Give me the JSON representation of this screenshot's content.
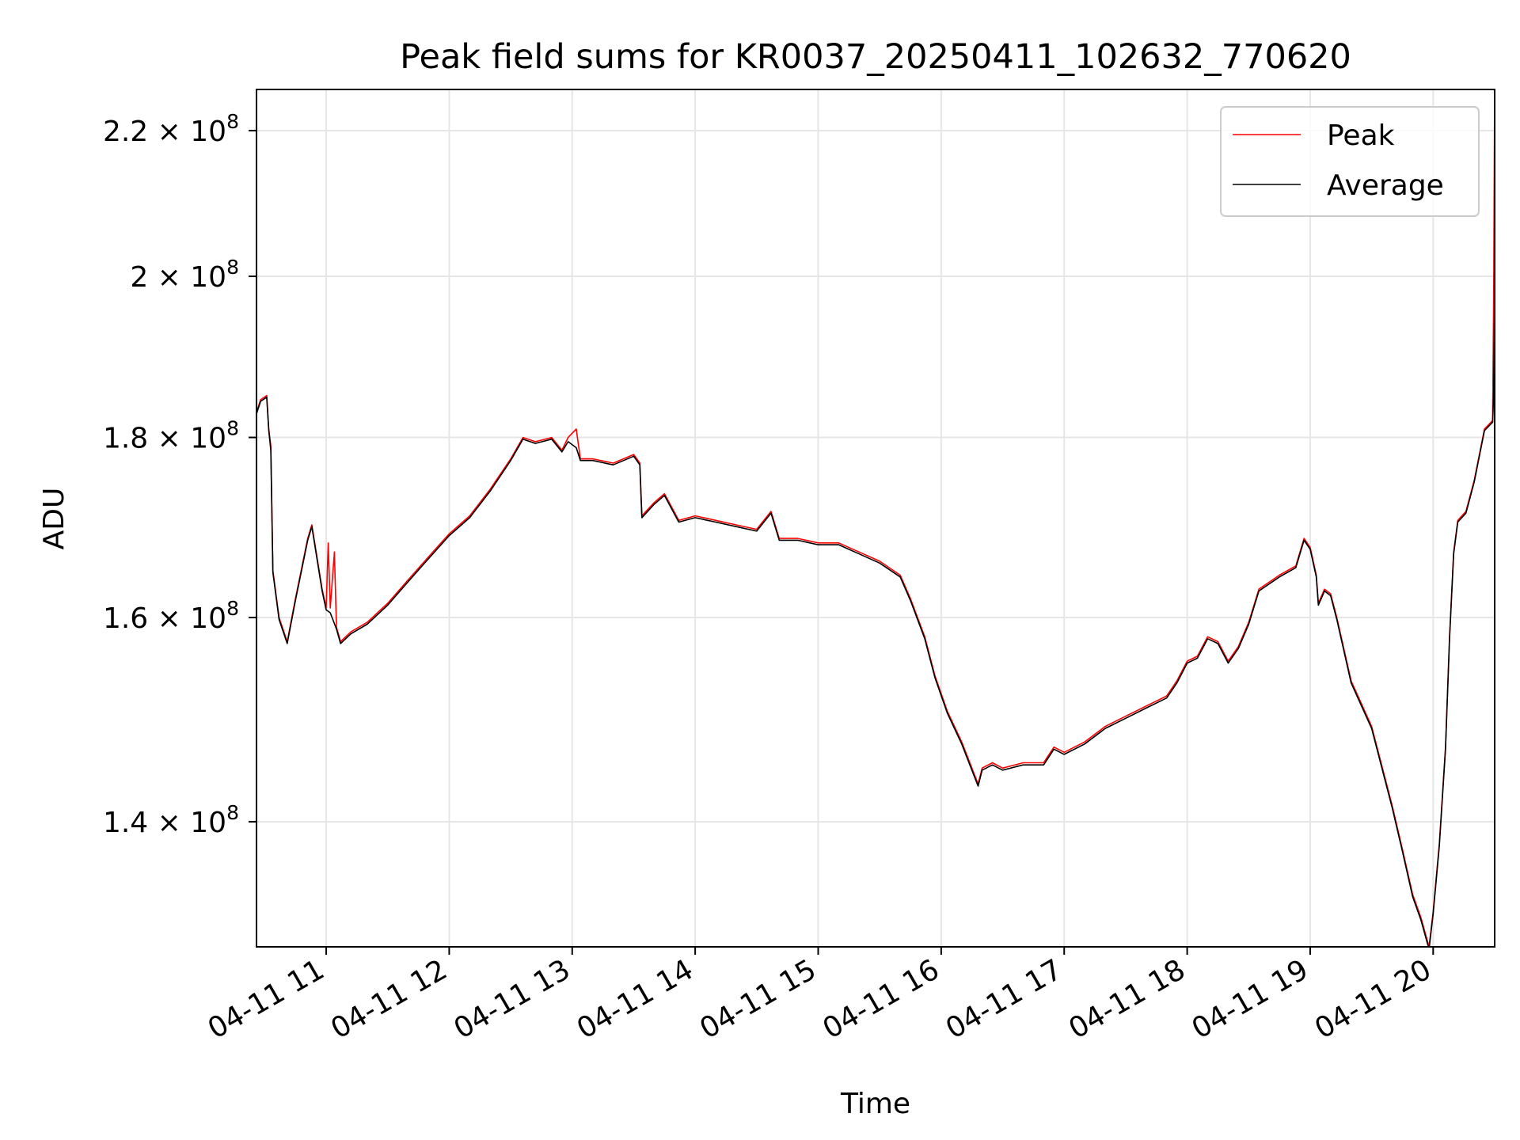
{
  "chart_data": {
    "type": "line",
    "title": "Peak field sums for KR0037_20250411_102632_770620",
    "xlabel": "Time",
    "ylabel": "ADU",
    "y_scale": "log",
    "xlim": [
      "04-11 10:26",
      "04-11 20:30"
    ],
    "ylim": [
      129000000,
      226000000
    ],
    "grid": true,
    "legend_position": "top-right",
    "x_ticks": [
      {
        "value": "04-11 11:00",
        "label": "04-11 11"
      },
      {
        "value": "04-11 12:00",
        "label": "04-11 12"
      },
      {
        "value": "04-11 13:00",
        "label": "04-11 13"
      },
      {
        "value": "04-11 14:00",
        "label": "04-11 14"
      },
      {
        "value": "04-11 15:00",
        "label": "04-11 15"
      },
      {
        "value": "04-11 16:00",
        "label": "04-11 16"
      },
      {
        "value": "04-11 17:00",
        "label": "04-11 17"
      },
      {
        "value": "04-11 18:00",
        "label": "04-11 18"
      },
      {
        "value": "04-11 19:00",
        "label": "04-11 19"
      },
      {
        "value": "04-11 20:00",
        "label": "04-11 20"
      }
    ],
    "y_ticks": [
      {
        "value": 140000000,
        "mantissa": "1.4",
        "base": "10",
        "exponent": "8"
      },
      {
        "value": 160000000,
        "mantissa": "1.6",
        "base": "10",
        "exponent": "8"
      },
      {
        "value": 180000000,
        "mantissa": "1.8",
        "base": "10",
        "exponent": "8"
      },
      {
        "value": 200000000,
        "mantissa": "2",
        "base": "10",
        "exponent": "8"
      },
      {
        "value": 220000000,
        "mantissa": "2.2",
        "base": "10",
        "exponent": "8"
      }
    ],
    "series": [
      {
        "name": "Peak",
        "color": "#ff0000",
        "points": [
          [
            "04-11 10:26",
            183000000
          ],
          [
            "04-11 10:28",
            184500000
          ],
          [
            "04-11 10:31",
            185000000
          ],
          [
            "04-11 10:32",
            181000000
          ],
          [
            "04-11 10:33",
            179000000
          ],
          [
            "04-11 10:34",
            165000000
          ],
          [
            "04-11 10:37",
            160000000
          ],
          [
            "04-11 10:41",
            157500000
          ],
          [
            "04-11 10:45",
            162000000
          ],
          [
            "04-11 10:51",
            168500000
          ],
          [
            "04-11 10:53",
            170000000
          ],
          [
            "04-11 10:58",
            163000000
          ],
          [
            "04-11 11:00",
            161000000
          ],
          [
            "04-11 11:01",
            168000000
          ],
          [
            "04-11 11:02",
            161000000
          ],
          [
            "04-11 11:04",
            167000000
          ],
          [
            "04-11 11:05",
            159000000
          ],
          [
            "04-11 11:07",
            157500000
          ],
          [
            "04-11 11:12",
            158500000
          ],
          [
            "04-11 11:20",
            159500000
          ],
          [
            "04-11 11:30",
            161500000
          ],
          [
            "04-11 11:40",
            164000000
          ],
          [
            "04-11 11:50",
            166500000
          ],
          [
            "04-11 12:00",
            169000000
          ],
          [
            "04-11 12:10",
            171000000
          ],
          [
            "04-11 12:20",
            174000000
          ],
          [
            "04-11 12:30",
            177500000
          ],
          [
            "04-11 12:36",
            180000000
          ],
          [
            "04-11 12:42",
            179500000
          ],
          [
            "04-11 12:50",
            180000000
          ],
          [
            "04-11 12:55",
            178500000
          ],
          [
            "04-11 12:58",
            180000000
          ],
          [
            "04-11 13:02",
            181000000
          ],
          [
            "04-11 13:04",
            177500000
          ],
          [
            "04-11 13:10",
            177500000
          ],
          [
            "04-11 13:20",
            177000000
          ],
          [
            "04-11 13:30",
            178000000
          ],
          [
            "04-11 13:33",
            177000000
          ],
          [
            "04-11 13:34",
            171000000
          ],
          [
            "04-11 13:40",
            172500000
          ],
          [
            "04-11 13:45",
            173500000
          ],
          [
            "04-11 13:52",
            170500000
          ],
          [
            "04-11 14:00",
            171000000
          ],
          [
            "04-11 14:10",
            170500000
          ],
          [
            "04-11 14:20",
            170000000
          ],
          [
            "04-11 14:30",
            169500000
          ],
          [
            "04-11 14:37",
            171500000
          ],
          [
            "04-11 14:41",
            168500000
          ],
          [
            "04-11 14:50",
            168500000
          ],
          [
            "04-11 15:00",
            168000000
          ],
          [
            "04-11 15:10",
            168000000
          ],
          [
            "04-11 15:20",
            167000000
          ],
          [
            "04-11 15:30",
            166000000
          ],
          [
            "04-11 15:40",
            164500000
          ],
          [
            "04-11 15:45",
            162000000
          ],
          [
            "04-11 15:52",
            158000000
          ],
          [
            "04-11 15:57",
            154000000
          ],
          [
            "04-11 16:03",
            150500000
          ],
          [
            "04-11 16:10",
            147500000
          ],
          [
            "04-11 16:18",
            143500000
          ],
          [
            "04-11 16:20",
            145000000
          ],
          [
            "04-11 16:25",
            145500000
          ],
          [
            "04-11 16:30",
            145000000
          ],
          [
            "04-11 16:40",
            145500000
          ],
          [
            "04-11 16:50",
            145500000
          ],
          [
            "04-11 16:55",
            147000000
          ],
          [
            "04-11 17:00",
            146500000
          ],
          [
            "04-11 17:10",
            147500000
          ],
          [
            "04-11 17:20",
            149000000
          ],
          [
            "04-11 17:30",
            150000000
          ],
          [
            "04-11 17:40",
            151000000
          ],
          [
            "04-11 17:50",
            152000000
          ],
          [
            "04-11 17:55",
            153500000
          ],
          [
            "04-11 18:00",
            155500000
          ],
          [
            "04-11 18:05",
            156000000
          ],
          [
            "04-11 18:10",
            158000000
          ],
          [
            "04-11 18:15",
            157500000
          ],
          [
            "04-11 18:20",
            155500000
          ],
          [
            "04-11 18:25",
            157000000
          ],
          [
            "04-11 18:30",
            159500000
          ],
          [
            "04-11 18:35",
            163000000
          ],
          [
            "04-11 18:45",
            164500000
          ],
          [
            "04-11 18:53",
            165500000
          ],
          [
            "04-11 18:57",
            168500000
          ],
          [
            "04-11 19:00",
            167500000
          ],
          [
            "04-11 19:03",
            164500000
          ],
          [
            "04-11 19:04",
            161500000
          ],
          [
            "04-11 19:07",
            163000000
          ],
          [
            "04-11 19:10",
            162500000
          ],
          [
            "04-11 19:13",
            160000000
          ],
          [
            "04-11 19:20",
            153500000
          ],
          [
            "04-11 19:30",
            149000000
          ],
          [
            "04-11 19:40",
            141500000
          ],
          [
            "04-11 19:45",
            137500000
          ],
          [
            "04-11 19:50",
            133500000
          ],
          [
            "04-11 19:54",
            131500000
          ],
          [
            "04-11 19:58",
            129000000
          ],
          [
            "04-11 20:00",
            132000000
          ],
          [
            "04-11 20:03",
            138000000
          ],
          [
            "04-11 20:06",
            147000000
          ],
          [
            "04-11 20:08",
            158000000
          ],
          [
            "04-11 20:10",
            167000000
          ],
          [
            "04-11 20:12",
            170500000
          ],
          [
            "04-11 20:16",
            171500000
          ],
          [
            "04-11 20:20",
            175000000
          ],
          [
            "04-11 20:25",
            181000000
          ],
          [
            "04-11 20:29",
            182000000
          ],
          [
            "04-11 20:29:30",
            197000000
          ],
          [
            "04-11 20:30",
            226000000
          ]
        ]
      },
      {
        "name": "Average",
        "color": "#000000",
        "points": [
          [
            "04-11 10:26",
            182800000
          ],
          [
            "04-11 10:28",
            184300000
          ],
          [
            "04-11 10:31",
            184800000
          ],
          [
            "04-11 10:32",
            180800000
          ],
          [
            "04-11 10:33",
            178500000
          ],
          [
            "04-11 10:34",
            164800000
          ],
          [
            "04-11 10:37",
            159800000
          ],
          [
            "04-11 10:41",
            157300000
          ],
          [
            "04-11 10:45",
            161800000
          ],
          [
            "04-11 10:51",
            168300000
          ],
          [
            "04-11 10:53",
            169800000
          ],
          [
            "04-11 10:58",
            162800000
          ],
          [
            "04-11 11:00",
            160800000
          ],
          [
            "04-11 11:02",
            160500000
          ],
          [
            "04-11 11:05",
            158800000
          ],
          [
            "04-11 11:07",
            157300000
          ],
          [
            "04-11 11:12",
            158300000
          ],
          [
            "04-11 11:20",
            159300000
          ],
          [
            "04-11 11:30",
            161300000
          ],
          [
            "04-11 11:40",
            163800000
          ],
          [
            "04-11 11:50",
            166300000
          ],
          [
            "04-11 12:00",
            168800000
          ],
          [
            "04-11 12:10",
            170800000
          ],
          [
            "04-11 12:20",
            173800000
          ],
          [
            "04-11 12:30",
            177300000
          ],
          [
            "04-11 12:36",
            179800000
          ],
          [
            "04-11 12:42",
            179300000
          ],
          [
            "04-11 12:50",
            179800000
          ],
          [
            "04-11 12:55",
            178300000
          ],
          [
            "04-11 12:58",
            179500000
          ],
          [
            "04-11 13:02",
            178800000
          ],
          [
            "04-11 13:04",
            177300000
          ],
          [
            "04-11 13:10",
            177300000
          ],
          [
            "04-11 13:20",
            176800000
          ],
          [
            "04-11 13:30",
            177800000
          ],
          [
            "04-11 13:33",
            176800000
          ],
          [
            "04-11 13:34",
            170800000
          ],
          [
            "04-11 13:40",
            172300000
          ],
          [
            "04-11 13:45",
            173300000
          ],
          [
            "04-11 13:52",
            170300000
          ],
          [
            "04-11 14:00",
            170800000
          ],
          [
            "04-11 14:10",
            170300000
          ],
          [
            "04-11 14:20",
            169800000
          ],
          [
            "04-11 14:30",
            169300000
          ],
          [
            "04-11 14:37",
            171300000
          ],
          [
            "04-11 14:41",
            168300000
          ],
          [
            "04-11 14:50",
            168300000
          ],
          [
            "04-11 15:00",
            167800000
          ],
          [
            "04-11 15:10",
            167800000
          ],
          [
            "04-11 15:20",
            166800000
          ],
          [
            "04-11 15:30",
            165800000
          ],
          [
            "04-11 15:40",
            164300000
          ],
          [
            "04-11 15:45",
            161800000
          ],
          [
            "04-11 15:52",
            157800000
          ],
          [
            "04-11 15:57",
            153800000
          ],
          [
            "04-11 16:03",
            150300000
          ],
          [
            "04-11 16:10",
            147300000
          ],
          [
            "04-11 16:18",
            143300000
          ],
          [
            "04-11 16:20",
            144800000
          ],
          [
            "04-11 16:25",
            145300000
          ],
          [
            "04-11 16:30",
            144800000
          ],
          [
            "04-11 16:40",
            145300000
          ],
          [
            "04-11 16:50",
            145300000
          ],
          [
            "04-11 16:55",
            146800000
          ],
          [
            "04-11 17:00",
            146300000
          ],
          [
            "04-11 17:10",
            147300000
          ],
          [
            "04-11 17:20",
            148800000
          ],
          [
            "04-11 17:30",
            149800000
          ],
          [
            "04-11 17:40",
            150800000
          ],
          [
            "04-11 17:50",
            151800000
          ],
          [
            "04-11 17:55",
            153300000
          ],
          [
            "04-11 18:00",
            155300000
          ],
          [
            "04-11 18:05",
            155800000
          ],
          [
            "04-11 18:10",
            157800000
          ],
          [
            "04-11 18:15",
            157300000
          ],
          [
            "04-11 18:20",
            155300000
          ],
          [
            "04-11 18:25",
            156800000
          ],
          [
            "04-11 18:30",
            159300000
          ],
          [
            "04-11 18:35",
            162800000
          ],
          [
            "04-11 18:45",
            164300000
          ],
          [
            "04-11 18:53",
            165300000
          ],
          [
            "04-11 18:57",
            168300000
          ],
          [
            "04-11 19:00",
            167300000
          ],
          [
            "04-11 19:03",
            164300000
          ],
          [
            "04-11 19:04",
            161300000
          ],
          [
            "04-11 19:07",
            162800000
          ],
          [
            "04-11 19:10",
            162300000
          ],
          [
            "04-11 19:13",
            159800000
          ],
          [
            "04-11 19:20",
            153300000
          ],
          [
            "04-11 19:30",
            148800000
          ],
          [
            "04-11 19:40",
            141300000
          ],
          [
            "04-11 19:45",
            137300000
          ],
          [
            "04-11 19:50",
            133300000
          ],
          [
            "04-11 19:54",
            131300000
          ],
          [
            "04-11 19:58",
            128800000
          ],
          [
            "04-11 20:00",
            131800000
          ],
          [
            "04-11 20:03",
            137800000
          ],
          [
            "04-11 20:06",
            146800000
          ],
          [
            "04-11 20:08",
            157800000
          ],
          [
            "04-11 20:10",
            166800000
          ],
          [
            "04-11 20:12",
            170300000
          ],
          [
            "04-11 20:16",
            171300000
          ],
          [
            "04-11 20:20",
            174800000
          ],
          [
            "04-11 20:25",
            180800000
          ],
          [
            "04-11 20:29",
            181800000
          ],
          [
            "04-11 20:29:30",
            185000000
          ],
          [
            "04-11 20:30",
            197000000
          ]
        ]
      }
    ]
  }
}
